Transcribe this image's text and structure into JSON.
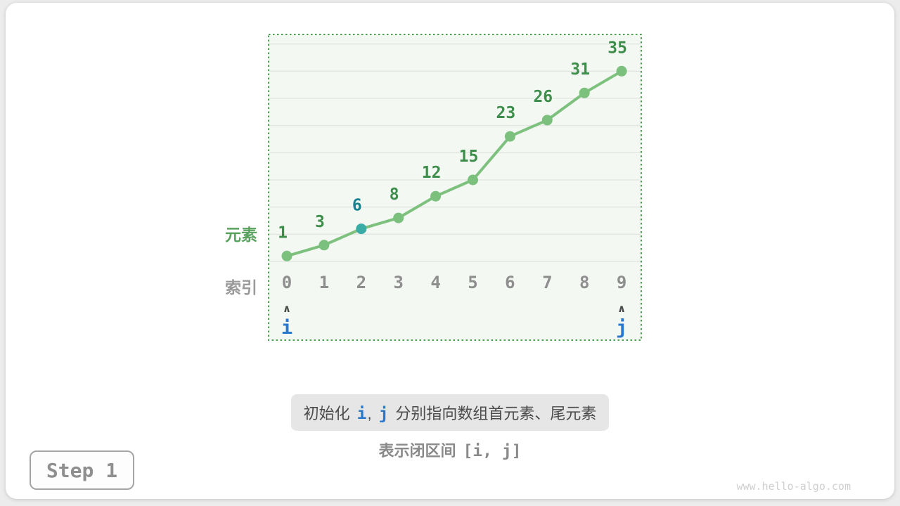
{
  "chart_data": {
    "type": "line",
    "x": [
      0,
      1,
      2,
      3,
      4,
      5,
      6,
      7,
      8,
      9
    ],
    "values": [
      1,
      3,
      6,
      8,
      12,
      15,
      23,
      26,
      31,
      35
    ],
    "xlabel": "索引",
    "ylabel": "元素",
    "ylim": [
      0,
      42
    ],
    "gridline_values": [
      0,
      5,
      10,
      15,
      20,
      25,
      30,
      35,
      40
    ],
    "grid": "on",
    "highlight": {
      "x": 2,
      "value": 6
    },
    "pointers": [
      {
        "label": "i",
        "x": 0,
        "caret": "∧"
      },
      {
        "label": "j",
        "x": 9,
        "caret": "∧"
      }
    ],
    "colors": {
      "background": "#f3f8f3",
      "border": "#4ba151",
      "grid": "#e3e7e2",
      "line": "#7ec17f",
      "dot": "#7bc07c",
      "dot_highlight": "#3aaca6",
      "value_label": "#3e8e4b",
      "value_label_highlight": "#17818f",
      "index_label": "#8e8e8e",
      "caret": "#4a4a4a",
      "pointer": "#2878d0"
    }
  },
  "caption": {
    "prefix": "初始化",
    "pointer_i": "i",
    "comma": ",",
    "pointer_j": "j",
    "suffix": "分别指向数组首元素、尾元素",
    "sub_prefix": "表示闭区间",
    "sub_interval": "[i, j]"
  },
  "footer": {
    "step_label": "Step 1",
    "watermark": "www.hello-algo.com"
  }
}
